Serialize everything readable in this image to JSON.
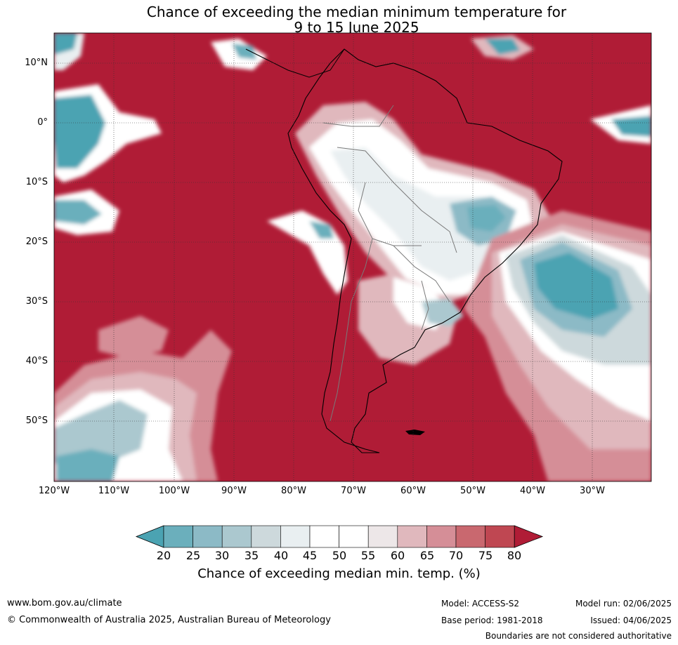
{
  "title_line1": "Chance of exceeding the median minimum temperature for",
  "title_line2": "9 to 15 June 2025",
  "latitude_labels": [
    "10°N",
    "0°",
    "10°S",
    "20°S",
    "30°S",
    "40°S",
    "50°S"
  ],
  "longitude_labels": [
    "120°W",
    "110°W",
    "100°W",
    "90°W",
    "80°W",
    "70°W",
    "60°W",
    "50°W",
    "40°W",
    "30°W"
  ],
  "colorbar": {
    "ticks": [
      "20",
      "25",
      "30",
      "35",
      "40",
      "45",
      "50",
      "55",
      "60",
      "65",
      "70",
      "75",
      "80"
    ],
    "label": "Chance of exceeding median min. temp. (%)",
    "colors": [
      "#4ba3b2",
      "#6bafbc",
      "#8cbac6",
      "#abc8cf",
      "#cdd9dc",
      "#e9eff1",
      "#ffffff",
      "#ffffff",
      "#ede7e8",
      "#e0b8bd",
      "#d58e97",
      "#c9686f",
      "#bf4752",
      "#b01c36"
    ]
  },
  "map_colors": {
    "high": "#b01c36",
    "mid_high": "#d58e97",
    "light_pink": "#e0b8bd",
    "neutral": "#ffffff",
    "light_blue": "#cdd9dc",
    "teal": "#4ba3b2"
  },
  "footer": {
    "website": "www.bom.gov.au/climate",
    "copyright": "© Commonwealth of Australia 2025, Australian Bureau of Meteorology",
    "model": "Model: ACCESS-S2",
    "base_period": "Base period: 1981-2018",
    "model_run": "Model run: 02/06/2025",
    "issued": "Issued: 04/06/2025",
    "disclaimer": "Boundaries are not considered authoritative"
  }
}
